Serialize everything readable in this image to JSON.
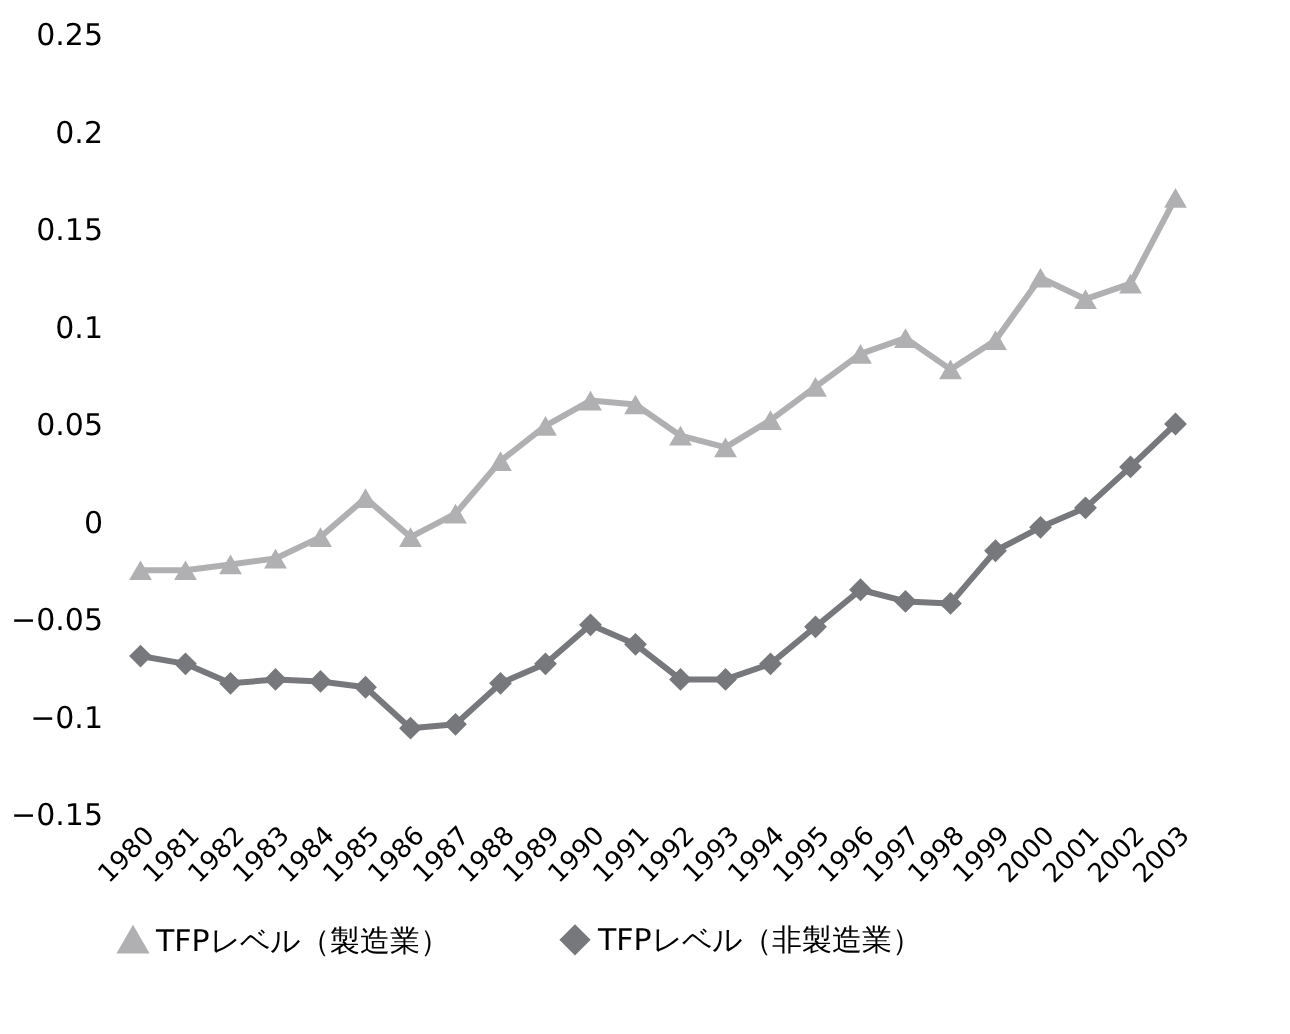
{
  "chart_data": {
    "type": "line",
    "categories": [
      "1980",
      "1981",
      "1982",
      "1983",
      "1984",
      "1985",
      "1986",
      "1987",
      "1988",
      "1989",
      "1990",
      "1991",
      "1992",
      "1993",
      "1994",
      "1995",
      "1996",
      "1997",
      "1998",
      "1999",
      "2000",
      "2001",
      "2002",
      "2003"
    ],
    "series": [
      {
        "name": "TFPレベル（製造業）",
        "color": "#b0b0b2",
        "marker": "triangle",
        "values": [
          -0.025,
          -0.025,
          -0.022,
          -0.019,
          -0.008,
          0.012,
          -0.008,
          0.004,
          0.031,
          0.049,
          0.062,
          0.06,
          0.044,
          0.038,
          0.052,
          0.069,
          0.086,
          0.094,
          0.078,
          0.093,
          0.125,
          0.114,
          0.122,
          0.166
        ]
      },
      {
        "name": "TFPレベル（非製造業）",
        "color": "#77787b",
        "marker": "diamond",
        "values": [
          -0.069,
          -0.073,
          -0.083,
          -0.081,
          -0.082,
          -0.085,
          -0.106,
          -0.104,
          -0.083,
          -0.073,
          -0.053,
          -0.063,
          -0.081,
          -0.081,
          -0.073,
          -0.054,
          -0.035,
          -0.041,
          -0.042,
          -0.015,
          -0.003,
          0.007,
          0.028,
          0.05
        ]
      }
    ],
    "ylim": [
      -0.15,
      0.25
    ],
    "yticks": [
      {
        "value": -0.15,
        "label": "−0.15"
      },
      {
        "value": -0.1,
        "label": "−0.1"
      },
      {
        "value": -0.05,
        "label": "−0.05"
      },
      0,
      0.05,
      0.1,
      0.15,
      0.2,
      0.25
    ],
    "grid": false,
    "legend": "bottom"
  }
}
